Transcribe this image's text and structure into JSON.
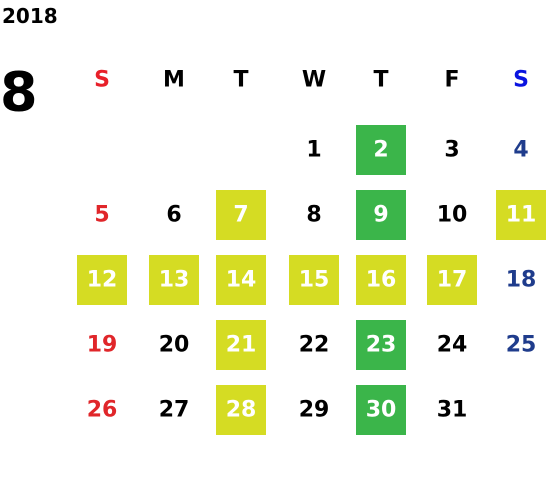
{
  "year": "2018",
  "month": "8",
  "weekdays": [
    "S",
    "M",
    "T",
    "W",
    "T",
    "F",
    "S"
  ],
  "weeks": [
    [
      null,
      null,
      null,
      {
        "label": "1"
      },
      {
        "label": "2",
        "fill": "#3bb54a"
      },
      {
        "label": "3"
      },
      {
        "label": "4"
      }
    ],
    [
      {
        "label": "5"
      },
      {
        "label": "6"
      },
      {
        "label": "7",
        "fill": "#d5dc23"
      },
      {
        "label": "8"
      },
      {
        "label": "9",
        "fill": "#3bb54a"
      },
      {
        "label": "10"
      },
      {
        "label": "11",
        "fill": "#d5dc23"
      }
    ],
    [
      {
        "label": "12",
        "fill": "#d5dc23"
      },
      {
        "label": "13",
        "fill": "#d5dc23"
      },
      {
        "label": "14",
        "fill": "#d5dc23"
      },
      {
        "label": "15",
        "fill": "#d5dc23"
      },
      {
        "label": "16",
        "fill": "#d5dc23"
      },
      {
        "label": "17",
        "fill": "#d5dc23"
      },
      {
        "label": "18"
      }
    ],
    [
      {
        "label": "19"
      },
      {
        "label": "20"
      },
      {
        "label": "21",
        "fill": "#d5dc23"
      },
      {
        "label": "22"
      },
      {
        "label": "23",
        "fill": "#3bb54a"
      },
      {
        "label": "24"
      },
      {
        "label": "25"
      }
    ],
    [
      {
        "label": "26"
      },
      {
        "label": "27"
      },
      {
        "label": "28",
        "fill": "#d5dc23"
      },
      {
        "label": "29"
      },
      {
        "label": "30",
        "fill": "#3bb54a"
      },
      {
        "label": "31"
      },
      null
    ]
  ]
}
